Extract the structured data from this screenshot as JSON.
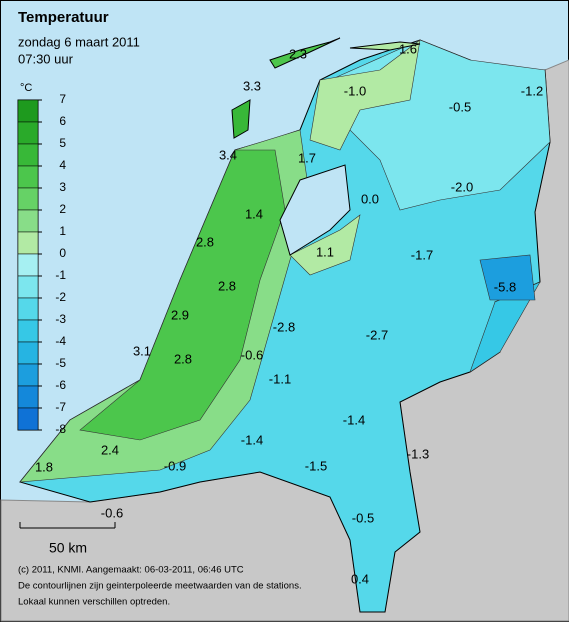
{
  "header": {
    "title": "Temperatuur",
    "date": "zondag 6 maart 2011",
    "time": "07:30 uur"
  },
  "legend": {
    "unit": "°C",
    "ticks": [
      7,
      6,
      5,
      4,
      3,
      2,
      1,
      0,
      -1,
      -2,
      -3,
      -4,
      -5,
      -6,
      -7,
      -8
    ],
    "colors": [
      "#1e9a1e",
      "#2aaa2a",
      "#38b838",
      "#4cc64c",
      "#66d266",
      "#88dd88",
      "#b2eaa4",
      "#a6f0f2",
      "#7ce6ee",
      "#55d8ea",
      "#36c8e6",
      "#26b4e2",
      "#1c9ede",
      "#1488da",
      "#0f72d6"
    ]
  },
  "stations": [
    "2.3",
    "1.6",
    "3.3",
    "-1.0",
    "-0.5",
    "-1.2",
    "3.4",
    "1.7",
    "0.0",
    "-2.0",
    "1.4",
    "2.8",
    "1.1",
    "-1.7",
    "-5.8",
    "2.8",
    "2.9",
    "-2.8",
    "-2.7",
    "3.1",
    "2.8",
    "-0.6",
    "-1.1",
    "-1.4",
    "-1.4",
    "-1.3",
    "2.4",
    "1.8",
    "-0.9",
    "-1.5",
    "-0.6",
    "-0.5",
    "0.4"
  ],
  "scale": "50 km",
  "footer": [
    "(c) 2011, KNMI. Aangemaakt: 06-03-2011, 06:46 UTC",
    "De contourlijnen zijn geinterpoleerde meetwaarden van de stations.",
    "Lokaal kunnen verschillen optreden."
  ]
}
